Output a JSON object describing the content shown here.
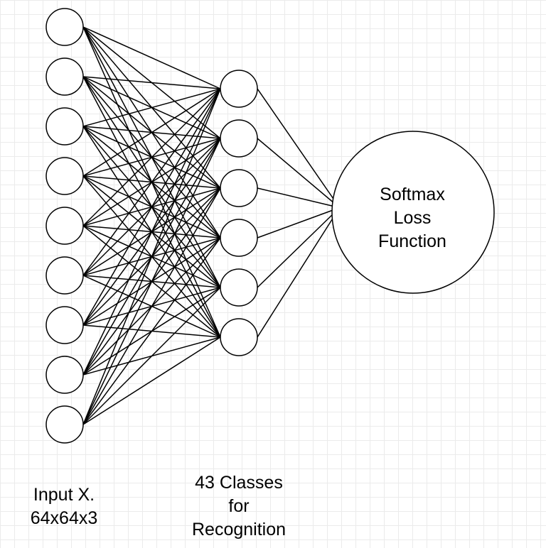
{
  "layers": {
    "input": {
      "neuron_count": 9,
      "label_lines": [
        "Input X.",
        "64x64x3"
      ]
    },
    "output": {
      "neuron_count": 6,
      "label_lines": [
        "43 Classes",
        "for",
        "Recognition"
      ]
    },
    "loss": {
      "label_lines": [
        "Softmax",
        "Loss",
        "Function"
      ]
    }
  },
  "colors": {
    "stroke": "#000000",
    "fill": "#ffffff",
    "grid": "#ebebeb"
  }
}
